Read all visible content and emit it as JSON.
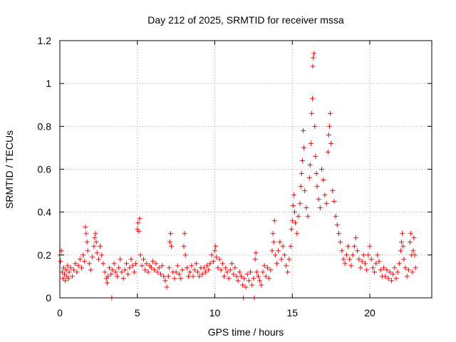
{
  "chart_data": {
    "type": "scatter",
    "title": "Day 212 of 2025, SRMTID for receiver mssa",
    "xlabel": "GPS time / hours",
    "ylabel": "SRMTID / TECUs",
    "xlim": [
      0,
      24
    ],
    "ylim": [
      0,
      1.2
    ],
    "x_ticks": [
      0,
      5,
      10,
      15,
      20
    ],
    "x_tick_labels": [
      "0",
      "5",
      "10",
      "15",
      "20"
    ],
    "y_ticks": [
      0,
      0.2,
      0.4,
      0.6,
      0.8,
      1.0,
      1.2
    ],
    "y_tick_labels": [
      "0",
      "0.2",
      "0.4",
      "0.6",
      "0.8",
      "1",
      "1.2"
    ],
    "grid": true,
    "marker": "+",
    "series": [
      {
        "name": "SRMTID",
        "color": "#ff0000",
        "points": [
          [
            0.0,
            0.2
          ],
          [
            0.05,
            0.17
          ],
          [
            0.1,
            0.22
          ],
          [
            0.15,
            0.12
          ],
          [
            0.2,
            0.09
          ],
          [
            0.25,
            0.14
          ],
          [
            0.3,
            0.11
          ],
          [
            0.35,
            0.08
          ],
          [
            0.4,
            0.13
          ],
          [
            0.45,
            0.1
          ],
          [
            0.5,
            0.15
          ],
          [
            0.55,
            0.09
          ],
          [
            0.6,
            0.12
          ],
          [
            0.7,
            0.14
          ],
          [
            0.8,
            0.1
          ],
          [
            0.9,
            0.13
          ],
          [
            1.0,
            0.16
          ],
          [
            1.1,
            0.12
          ],
          [
            1.2,
            0.15
          ],
          [
            1.3,
            0.18
          ],
          [
            1.4,
            0.14
          ],
          [
            1.5,
            0.2
          ],
          [
            1.6,
            0.17
          ],
          [
            1.65,
            0.33
          ],
          [
            1.7,
            0.3
          ],
          [
            1.75,
            0.26
          ],
          [
            1.8,
            0.22
          ],
          [
            1.9,
            0.16
          ],
          [
            2.0,
            0.13
          ],
          [
            2.1,
            0.19
          ],
          [
            2.2,
            0.24
          ],
          [
            2.25,
            0.28
          ],
          [
            2.3,
            0.3
          ],
          [
            2.35,
            0.26
          ],
          [
            2.4,
            0.21
          ],
          [
            2.5,
            0.18
          ],
          [
            2.6,
            0.24
          ],
          [
            2.7,
            0.2
          ],
          [
            2.8,
            0.16
          ],
          [
            2.9,
            0.12
          ],
          [
            3.0,
            0.09
          ],
          [
            3.05,
            0.07
          ],
          [
            3.1,
            0.1
          ],
          [
            3.2,
            0.14
          ],
          [
            3.3,
            0.11
          ],
          [
            3.35,
            0.0
          ],
          [
            3.4,
            0.13
          ],
          [
            3.5,
            0.16
          ],
          [
            3.6,
            0.12
          ],
          [
            3.7,
            0.1
          ],
          [
            3.8,
            0.14
          ],
          [
            3.9,
            0.18
          ],
          [
            4.0,
            0.12
          ],
          [
            4.1,
            0.09
          ],
          [
            4.2,
            0.13
          ],
          [
            4.3,
            0.16
          ],
          [
            4.4,
            0.11
          ],
          [
            4.5,
            0.14
          ],
          [
            4.6,
            0.18
          ],
          [
            4.7,
            0.15
          ],
          [
            4.8,
            0.12
          ],
          [
            4.9,
            0.16
          ],
          [
            5.0,
            0.32
          ],
          [
            5.05,
            0.35
          ],
          [
            5.1,
            0.31
          ],
          [
            5.15,
            0.37
          ],
          [
            5.2,
            0.2
          ],
          [
            5.3,
            0.15
          ],
          [
            5.4,
            0.18
          ],
          [
            5.5,
            0.13
          ],
          [
            5.6,
            0.16
          ],
          [
            5.7,
            0.12
          ],
          [
            5.8,
            0.15
          ],
          [
            5.9,
            0.14
          ],
          [
            6.0,
            0.17
          ],
          [
            6.1,
            0.13
          ],
          [
            6.2,
            0.16
          ],
          [
            6.3,
            0.12
          ],
          [
            6.4,
            0.14
          ],
          [
            6.5,
            0.11
          ],
          [
            6.6,
            0.15
          ],
          [
            6.7,
            0.1
          ],
          [
            6.8,
            0.08
          ],
          [
            6.9,
            0.05
          ],
          [
            7.0,
            0.1
          ],
          [
            7.05,
            0.14
          ],
          [
            7.1,
            0.26
          ],
          [
            7.15,
            0.3
          ],
          [
            7.2,
            0.24
          ],
          [
            7.3,
            0.12
          ],
          [
            7.4,
            0.09
          ],
          [
            7.5,
            0.12
          ],
          [
            7.6,
            0.15
          ],
          [
            7.7,
            0.11
          ],
          [
            7.8,
            0.09
          ],
          [
            7.9,
            0.13
          ],
          [
            8.0,
            0.24
          ],
          [
            8.05,
            0.3
          ],
          [
            8.1,
            0.2
          ],
          [
            8.2,
            0.14
          ],
          [
            8.3,
            0.1
          ],
          [
            8.4,
            0.12
          ],
          [
            8.5,
            0.15
          ],
          [
            8.6,
            0.1
          ],
          [
            8.7,
            0.13
          ],
          [
            8.8,
            0.16
          ],
          [
            8.9,
            0.12
          ],
          [
            9.0,
            0.1
          ],
          [
            9.1,
            0.14
          ],
          [
            9.2,
            0.11
          ],
          [
            9.3,
            0.14
          ],
          [
            9.4,
            0.12
          ],
          [
            9.5,
            0.15
          ],
          [
            9.6,
            0.13
          ],
          [
            9.7,
            0.16
          ],
          [
            9.8,
            0.2
          ],
          [
            9.9,
            0.17
          ],
          [
            10.0,
            0.22
          ],
          [
            10.05,
            0.24
          ],
          [
            10.1,
            0.19
          ],
          [
            10.2,
            0.14
          ],
          [
            10.3,
            0.18
          ],
          [
            10.4,
            0.13
          ],
          [
            10.5,
            0.16
          ],
          [
            10.6,
            0.1
          ],
          [
            10.7,
            0.14
          ],
          [
            10.8,
            0.12
          ],
          [
            10.9,
            0.09
          ],
          [
            11.0,
            0.13
          ],
          [
            11.1,
            0.16
          ],
          [
            11.2,
            0.11
          ],
          [
            11.3,
            0.14
          ],
          [
            11.4,
            0.1
          ],
          [
            11.5,
            0.08
          ],
          [
            11.6,
            0.12
          ],
          [
            11.7,
            0.1
          ],
          [
            11.8,
            0.06
          ],
          [
            11.85,
            0.0
          ],
          [
            11.9,
            0.09
          ],
          [
            12.0,
            0.05
          ],
          [
            12.1,
            0.11
          ],
          [
            12.2,
            0.08
          ],
          [
            12.3,
            0.12
          ],
          [
            12.4,
            0.06
          ],
          [
            12.5,
            0.09
          ],
          [
            12.55,
            0.0
          ],
          [
            12.6,
            0.18
          ],
          [
            12.65,
            0.21
          ],
          [
            12.7,
            0.12
          ],
          [
            12.8,
            0.1
          ],
          [
            12.9,
            0.08
          ],
          [
            13.0,
            0.06
          ],
          [
            13.1,
            0.12
          ],
          [
            13.2,
            0.15
          ],
          [
            13.3,
            0.1
          ],
          [
            13.4,
            0.14
          ],
          [
            13.5,
            0.09
          ],
          [
            13.6,
            0.13
          ],
          [
            13.7,
            0.22
          ],
          [
            13.75,
            0.3
          ],
          [
            13.8,
            0.26
          ],
          [
            13.85,
            0.36
          ],
          [
            13.9,
            0.2
          ],
          [
            14.0,
            0.16
          ],
          [
            14.1,
            0.22
          ],
          [
            14.2,
            0.26
          ],
          [
            14.3,
            0.18
          ],
          [
            14.4,
            0.24
          ],
          [
            14.5,
            0.2
          ],
          [
            14.6,
            0.15
          ],
          [
            14.7,
            0.12
          ],
          [
            14.8,
            0.18
          ],
          [
            14.9,
            0.24
          ],
          [
            14.95,
            0.32
          ],
          [
            15.0,
            0.36
          ],
          [
            15.05,
            0.43
          ],
          [
            15.1,
            0.48
          ],
          [
            15.15,
            0.4
          ],
          [
            15.2,
            0.35
          ],
          [
            15.3,
            0.3
          ],
          [
            15.4,
            0.38
          ],
          [
            15.5,
            0.44
          ],
          [
            15.55,
            0.52
          ],
          [
            15.6,
            0.58
          ],
          [
            15.65,
            0.64
          ],
          [
            15.7,
            0.78
          ],
          [
            15.75,
            0.7
          ],
          [
            15.8,
            0.5
          ],
          [
            15.9,
            0.42
          ],
          [
            16.0,
            0.38
          ],
          [
            16.1,
            0.56
          ],
          [
            16.15,
            0.62
          ],
          [
            16.2,
            0.72
          ],
          [
            16.25,
            0.86
          ],
          [
            16.3,
            0.93
          ],
          [
            16.32,
            1.08
          ],
          [
            16.35,
            1.12
          ],
          [
            16.4,
            1.14
          ],
          [
            16.45,
            0.8
          ],
          [
            16.5,
            0.66
          ],
          [
            16.55,
            0.58
          ],
          [
            16.6,
            0.52
          ],
          [
            16.7,
            0.46
          ],
          [
            16.8,
            0.42
          ],
          [
            16.9,
            0.6
          ],
          [
            17.0,
            0.55
          ],
          [
            17.1,
            0.48
          ],
          [
            17.2,
            0.44
          ],
          [
            17.3,
            0.68
          ],
          [
            17.35,
            0.76
          ],
          [
            17.4,
            0.8
          ],
          [
            17.45,
            0.86
          ],
          [
            17.5,
            0.72
          ],
          [
            17.6,
            0.5
          ],
          [
            17.7,
            0.45
          ],
          [
            17.8,
            0.38
          ],
          [
            17.9,
            0.34
          ],
          [
            18.0,
            0.3
          ],
          [
            18.1,
            0.26
          ],
          [
            18.2,
            0.22
          ],
          [
            18.3,
            0.18
          ],
          [
            18.4,
            0.16
          ],
          [
            18.5,
            0.2
          ],
          [
            18.6,
            0.24
          ],
          [
            18.7,
            0.18
          ],
          [
            18.8,
            0.15
          ],
          [
            18.9,
            0.2
          ],
          [
            19.0,
            0.24
          ],
          [
            19.1,
            0.28
          ],
          [
            19.2,
            0.22
          ],
          [
            19.3,
            0.18
          ],
          [
            19.4,
            0.14
          ],
          [
            19.5,
            0.17
          ],
          [
            19.6,
            0.2
          ],
          [
            19.7,
            0.16
          ],
          [
            19.8,
            0.13
          ],
          [
            19.9,
            0.2
          ],
          [
            20.0,
            0.24
          ],
          [
            20.1,
            0.18
          ],
          [
            20.2,
            0.14
          ],
          [
            20.3,
            0.12
          ],
          [
            20.4,
            0.16
          ],
          [
            20.5,
            0.2
          ],
          [
            20.6,
            0.17
          ],
          [
            20.7,
            0.13
          ],
          [
            20.8,
            0.1
          ],
          [
            20.9,
            0.14
          ],
          [
            21.0,
            0.1
          ],
          [
            21.1,
            0.13
          ],
          [
            21.2,
            0.09
          ],
          [
            21.3,
            0.12
          ],
          [
            21.4,
            0.08
          ],
          [
            21.5,
            0.11
          ],
          [
            21.6,
            0.14
          ],
          [
            21.7,
            0.09
          ],
          [
            21.8,
            0.12
          ],
          [
            21.9,
            0.16
          ],
          [
            22.0,
            0.22
          ],
          [
            22.05,
            0.26
          ],
          [
            22.1,
            0.3
          ],
          [
            22.15,
            0.24
          ],
          [
            22.2,
            0.18
          ],
          [
            22.3,
            0.14
          ],
          [
            22.4,
            0.1
          ],
          [
            22.5,
            0.13
          ],
          [
            22.6,
            0.26
          ],
          [
            22.65,
            0.3
          ],
          [
            22.7,
            0.2
          ],
          [
            22.75,
            0.12
          ],
          [
            22.8,
            0.22
          ],
          [
            22.85,
            0.28
          ],
          [
            22.9,
            0.2
          ],
          [
            22.95,
            0.14
          ]
        ]
      }
    ]
  }
}
